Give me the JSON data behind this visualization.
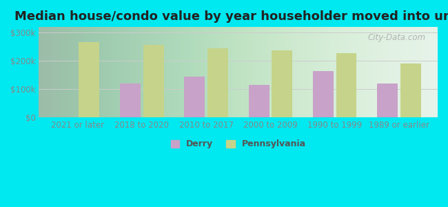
{
  "title": "Median house/condo value by year householder moved into unit",
  "categories": [
    "2021 or later",
    "2018 to 2020",
    "2010 to 2017",
    "2000 to 2009",
    "1990 to 1999",
    "1989 or earlier"
  ],
  "derry": [
    0,
    120000,
    145000,
    115000,
    163000,
    120000
  ],
  "pennsylvania": [
    265000,
    255000,
    243000,
    237000,
    228000,
    190000
  ],
  "derry_color": "#c8a2c8",
  "pennsylvania_color": "#c5d48a",
  "background_outer": "#00e8f0",
  "background_inner_left": "#b8e8c8",
  "background_inner_right": "#e8f8ee",
  "ylim": [
    0,
    320000
  ],
  "yticks": [
    0,
    100000,
    200000,
    300000
  ],
  "ytick_labels": [
    "$0",
    "$100k",
    "$200k",
    "$300k"
  ],
  "bar_width": 0.32,
  "legend_labels": [
    "Derry",
    "Pennsylvania"
  ],
  "watermark": "City-Data.com",
  "title_fontsize": 13,
  "tick_fontsize": 8.5
}
